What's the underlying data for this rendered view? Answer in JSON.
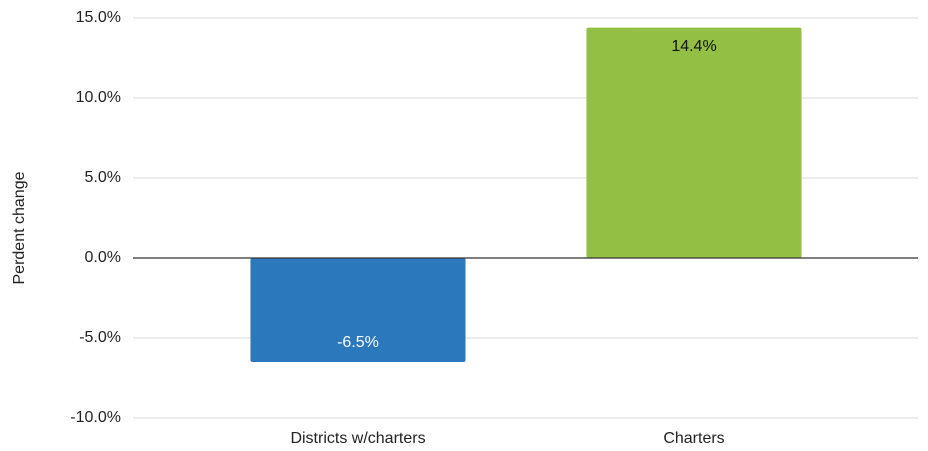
{
  "chart_data": {
    "type": "bar",
    "y_axis_label": "Perdent change",
    "categories": [
      "Districts w/charters",
      "Charters"
    ],
    "values": [
      -6.5,
      14.4
    ],
    "value_labels": [
      "-6.5%",
      "14.4%"
    ],
    "colors": [
      "#2b78bd",
      "#93bf45"
    ],
    "ylim": [
      -10,
      15
    ],
    "yticks": [
      {
        "value": -10,
        "label": "-10.0%"
      },
      {
        "value": -5,
        "label": "-5.0%"
      },
      {
        "value": 0,
        "label": "0.0%"
      },
      {
        "value": 5,
        "label": "5.0%"
      },
      {
        "value": 10,
        "label": "10.0%"
      },
      {
        "value": 15,
        "label": "15.0%"
      }
    ],
    "grid": true
  }
}
